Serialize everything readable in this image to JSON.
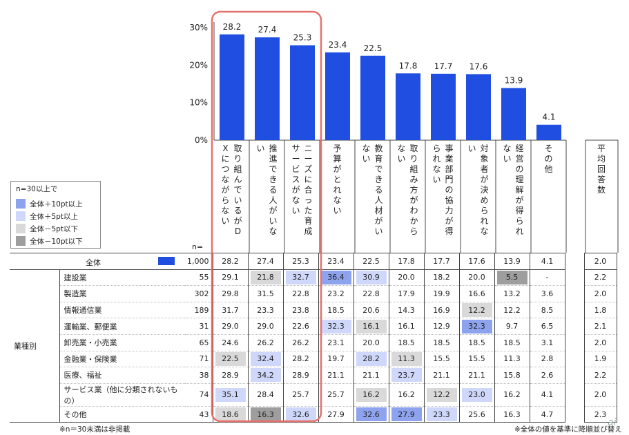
{
  "chart_data": {
    "type": "bar",
    "y_ticks": [
      "30%",
      "20%",
      "10%",
      "0%"
    ],
    "ylim": [
      0,
      30
    ],
    "categories": [
      "取り組んでいるがDXにつながらない",
      "推進できる人がいない",
      "ニーズに合った育成サービスがない",
      "予算がとれない",
      "教育できる人材がいない",
      "取り組み方がわからない",
      "事業部門の協力が得られない",
      "対象者が決められない",
      "経営の理解が得られない",
      "その他"
    ],
    "values": [
      28.2,
      27.4,
      25.3,
      23.4,
      22.5,
      17.8,
      17.7,
      17.6,
      13.9,
      4.1
    ],
    "bar_color": "#1f4ee0",
    "highlight_border_color": "#e8706c",
    "extra_column": "平均回答数"
  },
  "legend": {
    "title": "n=30以上で",
    "items": [
      {
        "label": "全体＋10pt以上",
        "color": "#8ea3ee"
      },
      {
        "label": "全体＋5pt以上",
        "color": "#cfd8fb"
      },
      {
        "label": "全体－5pt以下",
        "color": "#d9d9d9"
      },
      {
        "label": "全体－10pt以下",
        "color": "#9e9e9e"
      }
    ]
  },
  "table": {
    "n_label": "n=",
    "group_label": "業種別",
    "total": {
      "label": "全体",
      "n": "1,000",
      "values": [
        "28.2",
        "27.4",
        "25.3",
        "23.4",
        "22.5",
        "17.8",
        "17.7",
        "17.6",
        "13.9",
        "4.1"
      ],
      "avg": "2.0"
    },
    "rows": [
      {
        "label": "建設業",
        "n": "55",
        "values": [
          "29.1",
          "21.8",
          "32.7",
          "36.4",
          "30.9",
          "20.0",
          "18.2",
          "20.0",
          "5.5",
          "-"
        ],
        "avg": "2.2",
        "shade": [
          "",
          "g1",
          "b1",
          "b2",
          "b1",
          "",
          "",
          "",
          "g2",
          ""
        ]
      },
      {
        "label": "製造業",
        "n": "302",
        "values": [
          "29.8",
          "31.5",
          "22.8",
          "23.2",
          "22.8",
          "17.9",
          "19.9",
          "16.6",
          "13.2",
          "3.6"
        ],
        "avg": "2.0",
        "shade": [
          "",
          "",
          "",
          "",
          "",
          "",
          "",
          "",
          "",
          ""
        ]
      },
      {
        "label": "情報通信業",
        "n": "189",
        "values": [
          "31.7",
          "23.3",
          "23.8",
          "18.5",
          "20.6",
          "14.3",
          "16.9",
          "12.2",
          "12.2",
          "8.5"
        ],
        "avg": "1.8",
        "shade": [
          "",
          "",
          "",
          "",
          "",
          "",
          "",
          "g1",
          "",
          ""
        ]
      },
      {
        "label": "運輸業、郵便業",
        "n": "31",
        "values": [
          "29.0",
          "29.0",
          "22.6",
          "32.3",
          "16.1",
          "16.1",
          "12.9",
          "32.3",
          "9.7",
          "6.5"
        ],
        "avg": "2.1",
        "shade": [
          "",
          "",
          "",
          "b1",
          "g1",
          "",
          "",
          "b2",
          "",
          ""
        ]
      },
      {
        "label": "卸売業・小売業",
        "n": "65",
        "values": [
          "24.6",
          "26.2",
          "26.2",
          "23.1",
          "20.0",
          "18.5",
          "18.5",
          "18.5",
          "18.5",
          "3.1"
        ],
        "avg": "2.0",
        "shade": [
          "",
          "",
          "",
          "",
          "",
          "",
          "",
          "",
          "",
          ""
        ]
      },
      {
        "label": "金融業・保険業",
        "n": "71",
        "values": [
          "22.5",
          "32.4",
          "28.2",
          "19.7",
          "28.2",
          "11.3",
          "15.5",
          "15.5",
          "11.3",
          "2.8"
        ],
        "avg": "1.9",
        "shade": [
          "g1",
          "b1",
          "",
          "",
          "b1",
          "g1",
          "",
          "",
          "",
          ""
        ]
      },
      {
        "label": "医療、福祉",
        "n": "38",
        "values": [
          "28.9",
          "34.2",
          "28.9",
          "21.1",
          "21.1",
          "23.7",
          "21.1",
          "21.1",
          "15.8",
          "2.6"
        ],
        "avg": "2.2",
        "shade": [
          "",
          "b1",
          "",
          "",
          "",
          "b1",
          "",
          "",
          "",
          ""
        ]
      },
      {
        "label": "サービス業（他に分類されないもの）",
        "n": "74",
        "values": [
          "35.1",
          "28.4",
          "25.7",
          "25.7",
          "16.2",
          "16.2",
          "12.2",
          "23.0",
          "16.2",
          "4.1"
        ],
        "avg": "2.0",
        "shade": [
          "b1",
          "",
          "",
          "",
          "g1",
          "",
          "g1",
          "b1",
          "",
          ""
        ]
      },
      {
        "label": "その他",
        "n": "43",
        "values": [
          "18.6",
          "16.3",
          "32.6",
          "27.9",
          "32.6",
          "27.9",
          "23.3",
          "25.6",
          "16.3",
          "4.7"
        ],
        "avg": "2.3",
        "shade": [
          "g1",
          "g2",
          "b1",
          "",
          "b2",
          "b2",
          "b1",
          "",
          "",
          ""
        ]
      }
    ]
  },
  "footnotes": {
    "left": "※n＝30未満は非掲載",
    "right": "※全体の値を基準に降順並び替え"
  },
  "watermark": "ai",
  "shade_colors": {
    "b1": "#cfd8fb",
    "b2": "#8ea3ee",
    "g1": "#d9d9d9",
    "g2": "#9e9e9e"
  }
}
